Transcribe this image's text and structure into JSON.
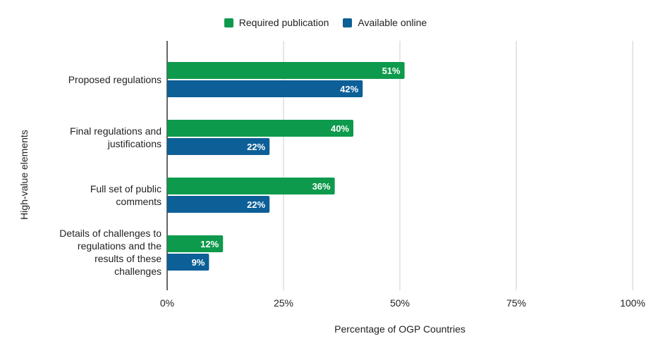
{
  "chart_data": {
    "type": "bar",
    "orientation": "horizontal",
    "categories": [
      "Proposed regulations",
      "Final regulations and\njustifications",
      "Full set of public\ncomments",
      "Details of challenges to\nregulations and the\nresults of these\nchallenges"
    ],
    "series": [
      {
        "name": "Required publication",
        "color": "#0d9a4c",
        "values": [
          51,
          40,
          36,
          12
        ]
      },
      {
        "name": "Available online",
        "color": "#0c5f97",
        "values": [
          42,
          22,
          22,
          9
        ]
      }
    ],
    "data_labels": [
      [
        "51%",
        "40%",
        "36%",
        "12%"
      ],
      [
        "42%",
        "22%",
        "22%",
        "9%"
      ]
    ],
    "xlabel": "Percentage of OGP Countries",
    "ylabel": "High-value elements",
    "xlim": [
      0,
      100
    ],
    "x_ticks": [
      "0%",
      "25%",
      "50%",
      "75%",
      "100%"
    ],
    "legend_position": "top-center",
    "grid": "vertical"
  }
}
